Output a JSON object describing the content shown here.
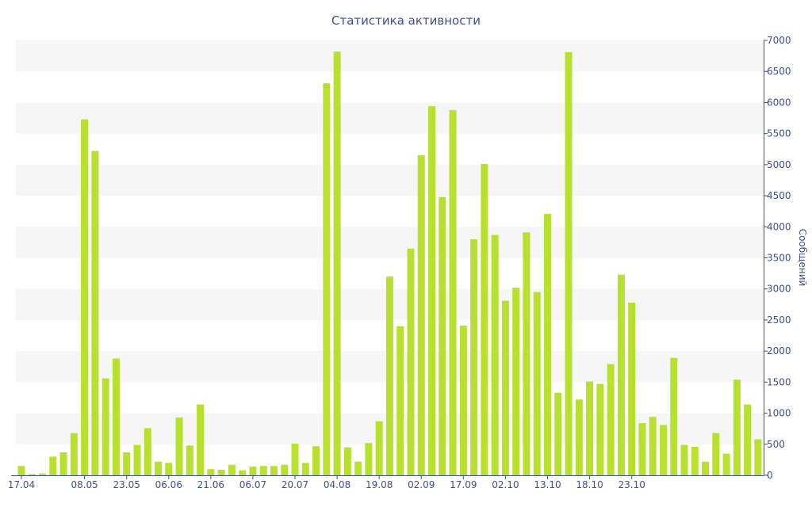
{
  "chart_data": {
    "type": "bar",
    "title": "Статистика активности",
    "ylabel": "Сообщений",
    "xlabel": "",
    "ylim": [
      0,
      7000
    ],
    "y_ticks": [
      0,
      500,
      1000,
      1500,
      2000,
      2500,
      3000,
      3500,
      4000,
      4500,
      5000,
      5500,
      6000,
      6500,
      7000
    ],
    "y_axis_side": "right",
    "grid": "alternating horizontal bands",
    "legend": "none",
    "bar_color": "#b8e12f",
    "text_color": "#3e4f8c",
    "x_tick_labels": [
      {
        "category": 0,
        "label": "17.04"
      },
      {
        "category": 6,
        "label": "08.05"
      },
      {
        "category": 10,
        "label": "23.05"
      },
      {
        "category": 14,
        "label": "06.06"
      },
      {
        "category": 18,
        "label": "21.06"
      },
      {
        "category": 22,
        "label": "06.07"
      },
      {
        "category": 26,
        "label": "20.07"
      },
      {
        "category": 30,
        "label": "04.08"
      },
      {
        "category": 34,
        "label": "19.08"
      },
      {
        "category": 38,
        "label": "02.09"
      },
      {
        "category": 42,
        "label": "17.09"
      },
      {
        "category": 46,
        "label": "02.10"
      },
      {
        "category": 50,
        "label": "13.10"
      },
      {
        "category": 54,
        "label": "18.10"
      },
      {
        "category": 58,
        "label": "23.10"
      }
    ],
    "values": [
      150,
      20,
      30,
      300,
      370,
      680,
      5730,
      5220,
      1560,
      1880,
      370,
      490,
      760,
      220,
      200,
      930,
      480,
      1140,
      100,
      90,
      170,
      80,
      140,
      150,
      150,
      170,
      510,
      200,
      470,
      6310,
      6820,
      450,
      220,
      520,
      870,
      3200,
      2400,
      3650,
      5150,
      5940,
      4480,
      5880,
      2410,
      3800,
      5010,
      3870,
      2810,
      3020,
      3910,
      2950,
      4210,
      1330,
      6810,
      1220,
      1510,
      1470,
      1790,
      3230,
      2780,
      840,
      940,
      810,
      1890,
      490,
      460,
      220,
      680,
      350,
      1540,
      1140,
      580
    ]
  }
}
